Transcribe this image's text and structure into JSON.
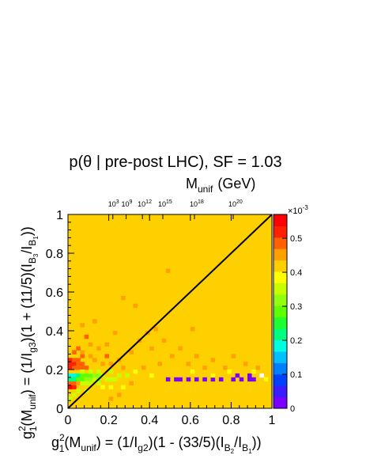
{
  "chart_data": {
    "type": "heatmap",
    "title": "p(θ | pre-post LHC), SF = 1.03",
    "xlabel": {
      "g": "g",
      "sup": "2",
      "sub1": "1",
      "m": "(M",
      "sub2": "unif",
      "rest": ") = (1/I",
      "sub3": "g2",
      "rest2": ")(1 - (33/5)(I",
      "sub4": "B",
      "sub4b": "2",
      "rest3": "/I",
      "sub5": "B",
      "sub5b": "1",
      "rest4": "))"
    },
    "ylabel": {
      "g": "g",
      "sup": "2",
      "sub1": "1",
      "m": "(M",
      "sub2": "unif",
      "rest": ") = (1/I",
      "sub3": "g3",
      "rest2": ")(1 + (11/5)(I",
      "sub4": "B",
      "sub4b": "3",
      "rest3": "/I",
      "sub5": "B",
      "sub5b": "1",
      "rest4": "))"
    },
    "top_axis_label": {
      "main": "M",
      "sub": "unif",
      "unit": "(GeV)"
    },
    "top_ticks": [
      {
        "base": "10",
        "exp": "3",
        "x": 0.22
      },
      {
        "base": "10",
        "exp": "9",
        "x": 0.285
      },
      {
        "base": "10",
        "exp": "12",
        "x": 0.365
      },
      {
        "base": "10",
        "exp": "15",
        "x": 0.465
      },
      {
        "base": "10",
        "exp": "18",
        "x": 0.62
      },
      {
        "base": "10",
        "exp": "20",
        "x": 0.81
      }
    ],
    "xlim": [
      0,
      1
    ],
    "ylim": [
      0,
      1
    ],
    "x_ticks": [
      "0",
      "0.2",
      "0.4",
      "0.6",
      "0.8",
      "1"
    ],
    "y_ticks": [
      "0",
      "0.2",
      "0.4",
      "0.6",
      "0.8",
      "1"
    ],
    "colorbar": {
      "multiplier": "×10",
      "multiplier_exp": "-3",
      "range": [
        0,
        0.00057
      ],
      "ticks": [
        "0",
        "0.1",
        "0.2",
        "0.3",
        "0.4",
        "0.5"
      ],
      "colors": [
        "#7a00ff",
        "#3a1cff",
        "#0040ff",
        "#0080ff",
        "#00c0ff",
        "#00ffe0",
        "#00ff80",
        "#20ff30",
        "#60ff00",
        "#90ff10",
        "#c8ff00",
        "#ffff00",
        "#ffd000",
        "#ffa000",
        "#ff6000",
        "#ff2000",
        "#ff0000"
      ]
    },
    "background_value": 0.41,
    "grid_bins": 50,
    "diagonal_line": {
      "from": [
        0,
        0
      ],
      "to": [
        1,
        1
      ]
    },
    "hot_cells": [
      {
        "x": 0.0,
        "y": 0.1,
        "v": 0.56
      },
      {
        "x": 0.02,
        "y": 0.1,
        "v": 0.52
      },
      {
        "x": 0.0,
        "y": 0.12,
        "v": 0.5
      },
      {
        "x": 0.02,
        "y": 0.12,
        "v": 0.5
      },
      {
        "x": 0.04,
        "y": 0.12,
        "v": 0.45
      },
      {
        "x": 0.0,
        "y": 0.22,
        "v": 0.53
      },
      {
        "x": 0.02,
        "y": 0.22,
        "v": 0.53
      },
      {
        "x": 0.04,
        "y": 0.22,
        "v": 0.5
      },
      {
        "x": 0.06,
        "y": 0.22,
        "v": 0.48
      },
      {
        "x": 0.0,
        "y": 0.24,
        "v": 0.52
      },
      {
        "x": 0.02,
        "y": 0.24,
        "v": 0.5
      },
      {
        "x": 0.0,
        "y": 0.2,
        "v": 0.52
      },
      {
        "x": 0.02,
        "y": 0.2,
        "v": 0.5
      },
      {
        "x": 0.04,
        "y": 0.2,
        "v": 0.5
      },
      {
        "x": 0.06,
        "y": 0.2,
        "v": 0.48
      },
      {
        "x": 0.08,
        "y": 0.2,
        "v": 0.47
      },
      {
        "x": 0.04,
        "y": 0.24,
        "v": 0.48
      },
      {
        "x": 0.06,
        "y": 0.26,
        "v": 0.47
      },
      {
        "x": 0.02,
        "y": 0.28,
        "v": 0.48
      },
      {
        "x": 0.06,
        "y": 0.28,
        "v": 0.46
      },
      {
        "x": 0.1,
        "y": 0.26,
        "v": 0.45
      },
      {
        "x": 0.0,
        "y": 0.14,
        "v": 0.22
      },
      {
        "x": 0.0,
        "y": 0.16,
        "v": 0.17
      },
      {
        "x": 0.02,
        "y": 0.16,
        "v": 0.18
      },
      {
        "x": 0.04,
        "y": 0.16,
        "v": 0.22
      },
      {
        "x": 0.06,
        "y": 0.16,
        "v": 0.27
      },
      {
        "x": 0.08,
        "y": 0.16,
        "v": 0.3
      },
      {
        "x": 0.1,
        "y": 0.16,
        "v": 0.3
      },
      {
        "x": 0.12,
        "y": 0.16,
        "v": 0.32
      },
      {
        "x": 0.14,
        "y": 0.16,
        "v": 0.32
      },
      {
        "x": 0.16,
        "y": 0.16,
        "v": 0.34
      },
      {
        "x": 0.02,
        "y": 0.14,
        "v": 0.23
      },
      {
        "x": 0.04,
        "y": 0.14,
        "v": 0.28
      },
      {
        "x": 0.06,
        "y": 0.14,
        "v": 0.3
      },
      {
        "x": 0.08,
        "y": 0.14,
        "v": 0.32
      },
      {
        "x": 0.1,
        "y": 0.14,
        "v": 0.31
      },
      {
        "x": 0.12,
        "y": 0.14,
        "v": 0.34
      },
      {
        "x": 0.14,
        "y": 0.14,
        "v": 0.32
      },
      {
        "x": 0.18,
        "y": 0.14,
        "v": 0.34
      },
      {
        "x": 0.2,
        "y": 0.14,
        "v": 0.34
      },
      {
        "x": 0.22,
        "y": 0.14,
        "v": 0.35
      },
      {
        "x": 0.24,
        "y": 0.16,
        "v": 0.34
      },
      {
        "x": 0.28,
        "y": 0.16,
        "v": 0.35
      },
      {
        "x": 0.06,
        "y": 0.12,
        "v": 0.35
      },
      {
        "x": 0.08,
        "y": 0.12,
        "v": 0.36
      },
      {
        "x": 0.1,
        "y": 0.12,
        "v": 0.34
      },
      {
        "x": 0.14,
        "y": 0.12,
        "v": 0.35
      },
      {
        "x": 0.06,
        "y": 0.18,
        "v": 0.35
      },
      {
        "x": 0.1,
        "y": 0.18,
        "v": 0.36
      },
      {
        "x": 0.14,
        "y": 0.18,
        "v": 0.35
      },
      {
        "x": 0.2,
        "y": 0.18,
        "v": 0.36
      },
      {
        "x": 0.04,
        "y": 0.08,
        "v": 0.34
      },
      {
        "x": 0.08,
        "y": 0.08,
        "v": 0.36
      },
      {
        "x": 0.02,
        "y": 0.06,
        "v": 0.34
      },
      {
        "x": 0.0,
        "y": 0.04,
        "v": 0.36
      },
      {
        "x": 0.48,
        "y": 0.14,
        "v": 0.02
      },
      {
        "x": 0.52,
        "y": 0.14,
        "v": 0.02
      },
      {
        "x": 0.54,
        "y": 0.14,
        "v": 0.01
      },
      {
        "x": 0.58,
        "y": 0.14,
        "v": 0.02
      },
      {
        "x": 0.62,
        "y": 0.14,
        "v": 0.02
      },
      {
        "x": 0.66,
        "y": 0.14,
        "v": 0.02
      },
      {
        "x": 0.7,
        "y": 0.14,
        "v": 0.01
      },
      {
        "x": 0.74,
        "y": 0.14,
        "v": 0.02
      },
      {
        "x": 0.8,
        "y": 0.14,
        "v": 0.02
      },
      {
        "x": 0.82,
        "y": 0.16,
        "v": 0.01
      },
      {
        "x": 0.84,
        "y": 0.14,
        "v": 0.02
      },
      {
        "x": 0.88,
        "y": 0.14,
        "v": 0.02
      },
      {
        "x": 0.88,
        "y": 0.16,
        "v": 0.02
      },
      {
        "x": 0.9,
        "y": 0.14,
        "v": 0.01
      },
      {
        "x": 0.94,
        "y": 0.16,
        "v": null
      },
      {
        "x": 0.14,
        "y": 0.3,
        "v": 0.46
      },
      {
        "x": 0.18,
        "y": 0.32,
        "v": 0.45
      },
      {
        "x": 0.2,
        "y": 0.22,
        "v": 0.46
      },
      {
        "x": 0.24,
        "y": 0.24,
        "v": 0.45
      },
      {
        "x": 0.3,
        "y": 0.28,
        "v": 0.45
      },
      {
        "x": 0.34,
        "y": 0.34,
        "v": 0.46
      },
      {
        "x": 0.38,
        "y": 0.38,
        "v": 0.45
      },
      {
        "x": 0.4,
        "y": 0.3,
        "v": 0.46
      },
      {
        "x": 0.44,
        "y": 0.22,
        "v": 0.45
      },
      {
        "x": 0.5,
        "y": 0.26,
        "v": 0.46
      },
      {
        "x": 0.54,
        "y": 0.3,
        "v": 0.45
      },
      {
        "x": 0.58,
        "y": 0.22,
        "v": 0.46
      },
      {
        "x": 0.62,
        "y": 0.26,
        "v": 0.45
      },
      {
        "x": 0.66,
        "y": 0.2,
        "v": 0.46
      },
      {
        "x": 0.7,
        "y": 0.24,
        "v": 0.45
      },
      {
        "x": 0.76,
        "y": 0.2,
        "v": 0.46
      },
      {
        "x": 0.8,
        "y": 0.26,
        "v": 0.45
      },
      {
        "x": 0.86,
        "y": 0.22,
        "v": 0.45
      },
      {
        "x": 0.92,
        "y": 0.2,
        "v": 0.45
      },
      {
        "x": 0.22,
        "y": 0.38,
        "v": 0.46
      },
      {
        "x": 0.12,
        "y": 0.44,
        "v": 0.45
      },
      {
        "x": 0.08,
        "y": 0.36,
        "v": 0.47
      },
      {
        "x": 0.16,
        "y": 0.22,
        "v": 0.46
      },
      {
        "x": 0.26,
        "y": 0.2,
        "v": 0.46
      },
      {
        "x": 0.3,
        "y": 0.12,
        "v": 0.45
      },
      {
        "x": 0.36,
        "y": 0.2,
        "v": 0.46
      },
      {
        "x": 0.42,
        "y": 0.4,
        "v": 0.45
      },
      {
        "x": 0.46,
        "y": 0.34,
        "v": 0.45
      },
      {
        "x": 0.32,
        "y": 0.52,
        "v": 0.45
      },
      {
        "x": 0.26,
        "y": 0.56,
        "v": 0.45
      },
      {
        "x": 0.48,
        "y": 0.7,
        "v": 0.45
      },
      {
        "x": 0.6,
        "y": 0.4,
        "v": 0.45
      },
      {
        "x": 0.24,
        "y": 0.06,
        "v": 0.44
      },
      {
        "x": 0.2,
        "y": 0.04,
        "v": 0.44
      },
      {
        "x": 0.06,
        "y": 0.42,
        "v": 0.45
      },
      {
        "x": 0.04,
        "y": 0.3,
        "v": 0.47
      },
      {
        "x": 0.12,
        "y": 0.24,
        "v": 0.46
      },
      {
        "x": 0.18,
        "y": 0.26,
        "v": 0.47
      },
      {
        "x": 0.1,
        "y": 0.32,
        "v": 0.46
      },
      {
        "x": 0.16,
        "y": 0.1,
        "v": 0.38
      },
      {
        "x": 0.2,
        "y": 0.1,
        "v": 0.38
      },
      {
        "x": 0.26,
        "y": 0.1,
        "v": 0.39
      },
      {
        "x": 0.32,
        "y": 0.18,
        "v": 0.37
      },
      {
        "x": 0.4,
        "y": 0.16,
        "v": 0.37
      },
      {
        "x": 0.6,
        "y": 0.18,
        "v": 0.38
      },
      {
        "x": 0.7,
        "y": 0.16,
        "v": 0.37
      },
      {
        "x": 0.78,
        "y": 0.18,
        "v": 0.38
      },
      {
        "x": 0.9,
        "y": 0.18,
        "v": 0.37
      },
      {
        "x": 0.96,
        "y": 0.14,
        "v": 0.37
      }
    ]
  }
}
